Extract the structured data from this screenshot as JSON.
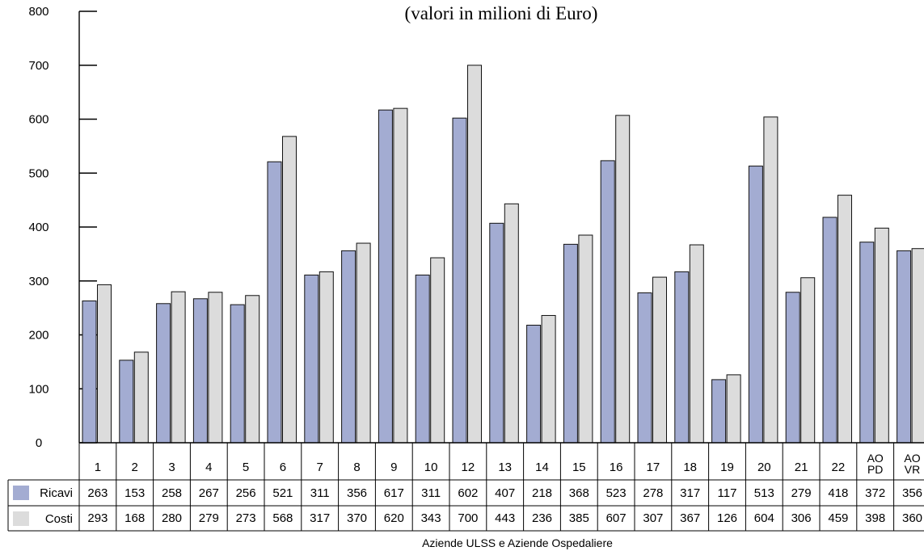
{
  "chart_data": {
    "type": "bar",
    "title": "(valori in milioni di Euro)",
    "xlabel": "Aziende ULSS e Aziende Ospedaliere",
    "ylabel": "",
    "ylim": [
      0,
      800
    ],
    "yticks": [
      0,
      100,
      200,
      300,
      400,
      500,
      600,
      700,
      800
    ],
    "categories": [
      "1",
      "2",
      "3",
      "4",
      "5",
      "6",
      "7",
      "8",
      "9",
      "10",
      "12",
      "13",
      "14",
      "15",
      "16",
      "17",
      "18",
      "19",
      "20",
      "21",
      "22",
      "AO PD",
      "AO VR"
    ],
    "series": [
      {
        "name": "Ricavi",
        "color": "#a3acd2",
        "values": [
          263,
          153,
          258,
          267,
          256,
          521,
          311,
          356,
          617,
          311,
          602,
          407,
          218,
          368,
          523,
          278,
          317,
          117,
          513,
          279,
          418,
          372,
          356
        ]
      },
      {
        "name": "Costi",
        "color": "#dcdcdc",
        "values": [
          293,
          168,
          280,
          279,
          273,
          568,
          317,
          370,
          620,
          343,
          700,
          443,
          236,
          385,
          607,
          307,
          367,
          126,
          604,
          306,
          459,
          398,
          360
        ]
      }
    ],
    "legend": "left-table",
    "grid": false
  }
}
